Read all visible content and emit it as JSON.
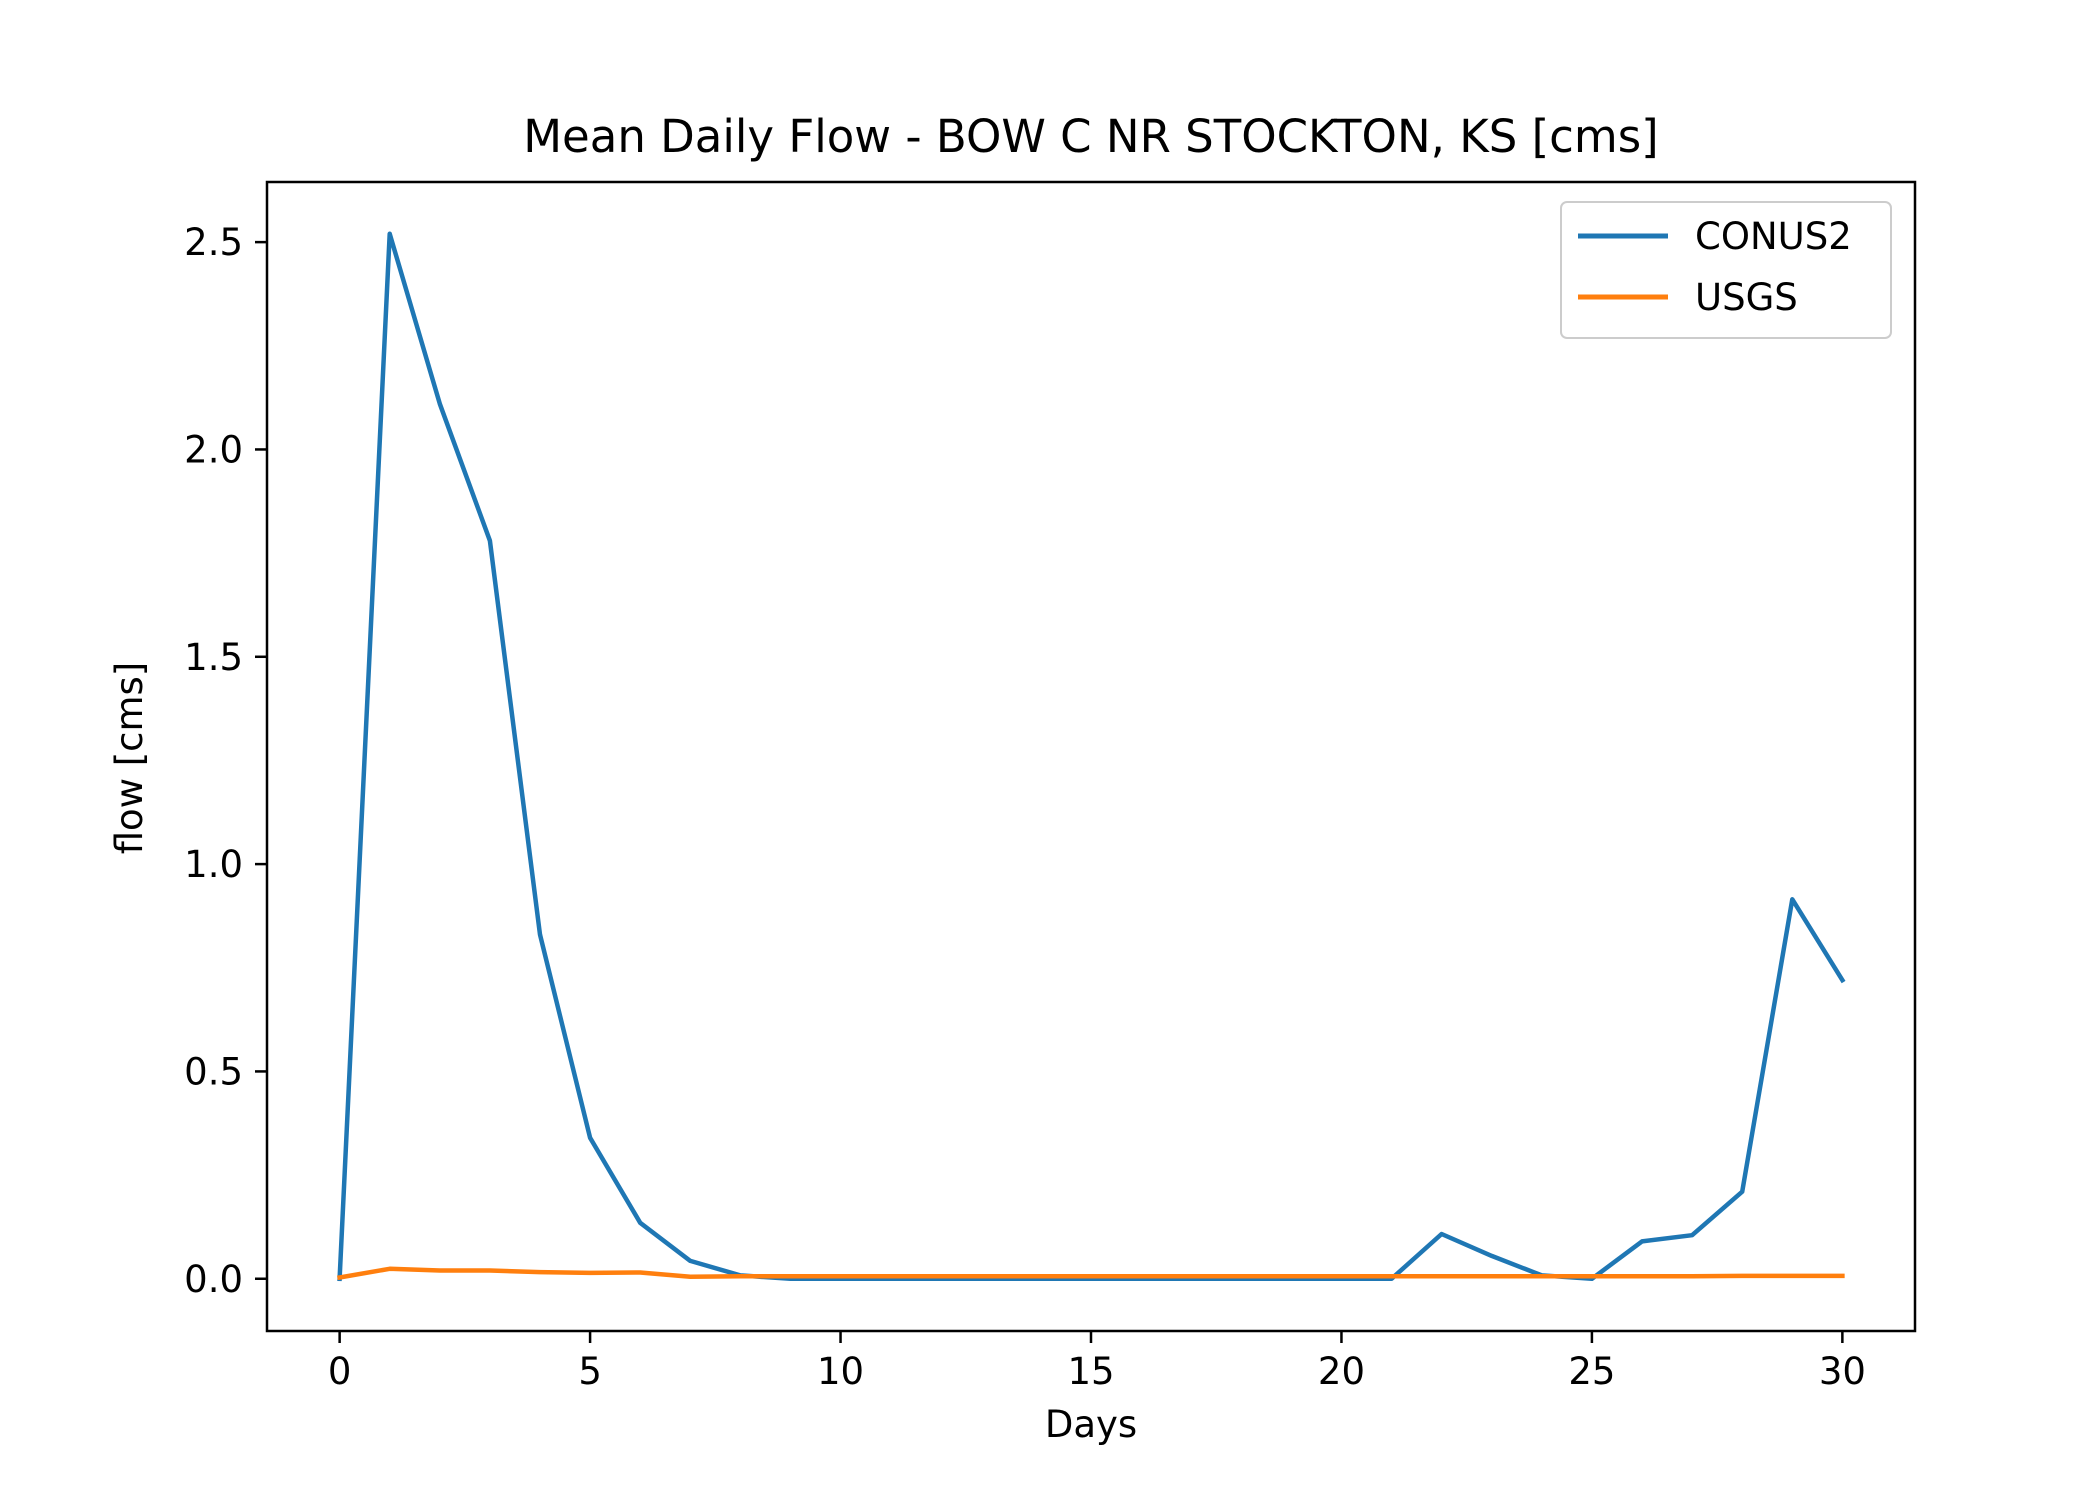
{
  "chart_data": {
    "type": "line",
    "title": "Mean Daily Flow - BOW C NR STOCKTON, KS [cms]",
    "xlabel": "Days",
    "ylabel": "flow [cms]",
    "xlim": [
      -1.45,
      31.45
    ],
    "ylim": [
      -0.126,
      2.645
    ],
    "xticks": [
      0,
      5,
      10,
      15,
      20,
      25,
      30
    ],
    "xtick_labels": [
      "0",
      "5",
      "10",
      "15",
      "20",
      "25",
      "30"
    ],
    "yticks": [
      0.0,
      0.5,
      1.0,
      1.5,
      2.0,
      2.5
    ],
    "ytick_labels": [
      "0.0",
      "0.5",
      "1.0",
      "1.5",
      "2.0",
      "2.5"
    ],
    "grid": false,
    "legend_position": "top-right",
    "x": [
      0,
      1,
      2,
      3,
      4,
      5,
      6,
      7,
      8,
      9,
      10,
      11,
      12,
      13,
      14,
      15,
      16,
      17,
      18,
      19,
      20,
      21,
      22,
      23,
      24,
      25,
      26,
      27,
      28,
      29,
      30
    ],
    "series": [
      {
        "name": "CONUS2",
        "color": "#1f77b4",
        "values": [
          0.0,
          2.52,
          2.11,
          1.78,
          0.83,
          0.34,
          0.135,
          0.043,
          0.008,
          0.0,
          0.0,
          0.0,
          0.0,
          0.0,
          0.0,
          0.0,
          0.0,
          0.0,
          0.0,
          0.0,
          0.0,
          0.0,
          0.108,
          0.055,
          0.008,
          0.0,
          0.09,
          0.105,
          0.21,
          0.915,
          0.72
        ]
      },
      {
        "name": "USGS",
        "color": "#ff7f0e",
        "values": [
          0.003,
          0.024,
          0.02,
          0.02,
          0.016,
          0.014,
          0.015,
          0.005,
          0.006,
          0.006,
          0.006,
          0.006,
          0.006,
          0.006,
          0.006,
          0.006,
          0.006,
          0.006,
          0.006,
          0.006,
          0.006,
          0.006,
          0.006,
          0.006,
          0.006,
          0.006,
          0.006,
          0.006,
          0.007,
          0.007,
          0.007
        ]
      }
    ]
  }
}
